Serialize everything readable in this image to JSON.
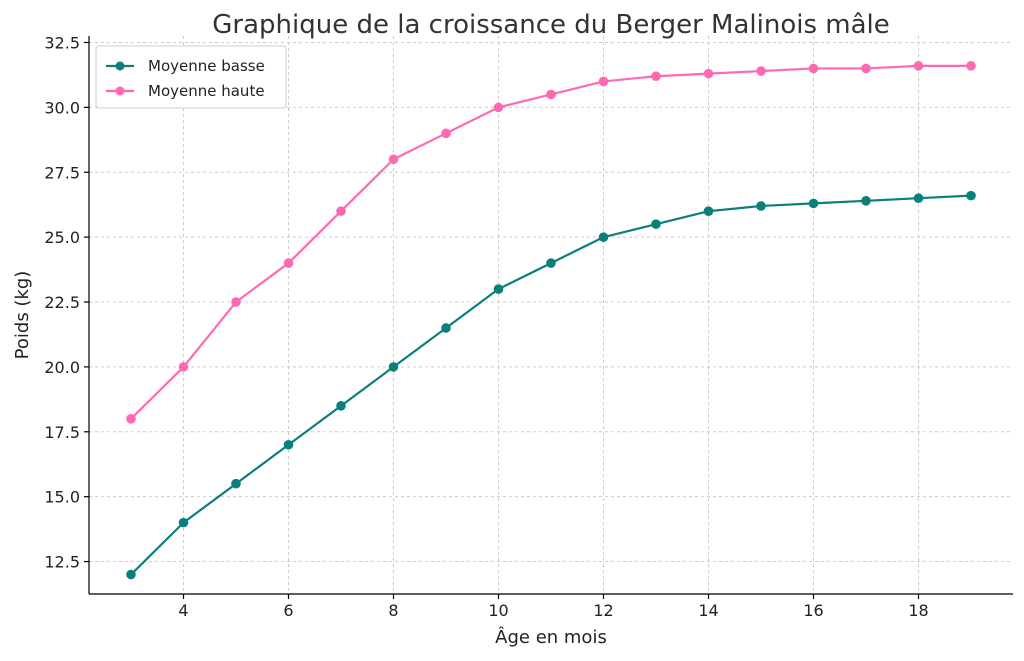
{
  "chart_data": {
    "type": "line",
    "title": "Graphique de la croissance du Berger Malinois mâle",
    "xlabel": "Âge en mois",
    "ylabel": "Poids (kg)",
    "xlim": [
      2.2,
      19.8
    ],
    "ylim": [
      11.25,
      32.75
    ],
    "xticks": [
      4,
      6,
      8,
      10,
      12,
      14,
      16,
      18
    ],
    "yticks": [
      12.5,
      15.0,
      17.5,
      20.0,
      22.5,
      25.0,
      27.5,
      30.0,
      32.5
    ],
    "xtick_labels": [
      "4",
      "6",
      "8",
      "10",
      "12",
      "14",
      "16",
      "18"
    ],
    "ytick_labels": [
      "12.5",
      "15.0",
      "17.5",
      "20.0",
      "22.5",
      "25.0",
      "27.5",
      "30.0",
      "32.5"
    ],
    "grid": true,
    "legend_position": "top-left",
    "x": [
      3,
      4,
      5,
      6,
      7,
      8,
      9,
      10,
      11,
      12,
      13,
      14,
      15,
      16,
      17,
      18,
      19
    ],
    "series": [
      {
        "name": "Moyenne basse",
        "color": "#0a7f7c",
        "values": [
          12.0,
          14.0,
          15.5,
          17.0,
          18.5,
          20.0,
          21.5,
          23.0,
          24.0,
          25.0,
          25.5,
          26.0,
          26.2,
          26.3,
          26.4,
          26.5,
          26.6
        ]
      },
      {
        "name": "Moyenne haute",
        "color": "#ff69b4",
        "values": [
          18.0,
          20.0,
          22.5,
          24.0,
          26.0,
          28.0,
          29.0,
          30.0,
          30.5,
          31.0,
          31.2,
          31.3,
          31.4,
          31.5,
          31.5,
          31.6,
          31.6
        ]
      }
    ]
  }
}
